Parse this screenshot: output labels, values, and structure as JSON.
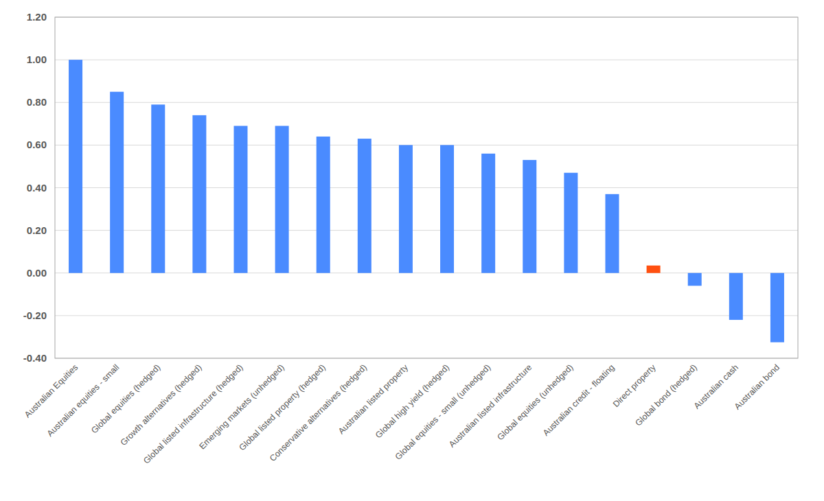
{
  "chart_data": {
    "type": "bar",
    "categories": [
      "Australian Equities",
      "Australian equities - small",
      "Global equities (hedged)",
      "Growth alternatives (hedged)",
      "Global listed infrastructure (hedged)",
      "Emerging markets (unhedged)",
      "Global listed property (hedged)",
      "Conservative alternatives (hedged)",
      "Australian listed property",
      "Global high yield (hedged)",
      "Global equities - small (unhedged)",
      "Australian listed infrastructure",
      "Global equities (unhedged)",
      "Australian credit - floating",
      "Direct property",
      "Global bond (hedged)",
      "Australian cash",
      "Australian bond"
    ],
    "values": [
      1.0,
      0.85,
      0.79,
      0.74,
      0.69,
      0.69,
      0.64,
      0.63,
      0.6,
      0.6,
      0.56,
      0.53,
      0.47,
      0.37,
      0.035,
      -0.06,
      -0.22,
      -0.325
    ],
    "colors": [
      "#4a8bff",
      "#4a8bff",
      "#4a8bff",
      "#4a8bff",
      "#4a8bff",
      "#4a8bff",
      "#4a8bff",
      "#4a8bff",
      "#4a8bff",
      "#4a8bff",
      "#4a8bff",
      "#4a8bff",
      "#4a8bff",
      "#4a8bff",
      "#ff5010",
      "#4a8bff",
      "#4a8bff",
      "#4a8bff"
    ],
    "ylim": [
      -0.4,
      1.2
    ],
    "yticks": [
      {
        "value": -0.4,
        "label": "-0.40"
      },
      {
        "value": -0.2,
        "label": "-0.20"
      },
      {
        "value": 0,
        "label": "0.00"
      },
      {
        "value": 0.2,
        "label": "0.20"
      },
      {
        "value": 0.4,
        "label": "0.40"
      },
      {
        "value": 0.6,
        "label": "0.60"
      },
      {
        "value": 0.8,
        "label": "0.80"
      },
      {
        "value": 1.0,
        "label": "1.00"
      },
      {
        "value": 1.2,
        "label": "1.20"
      }
    ],
    "grid": true
  }
}
